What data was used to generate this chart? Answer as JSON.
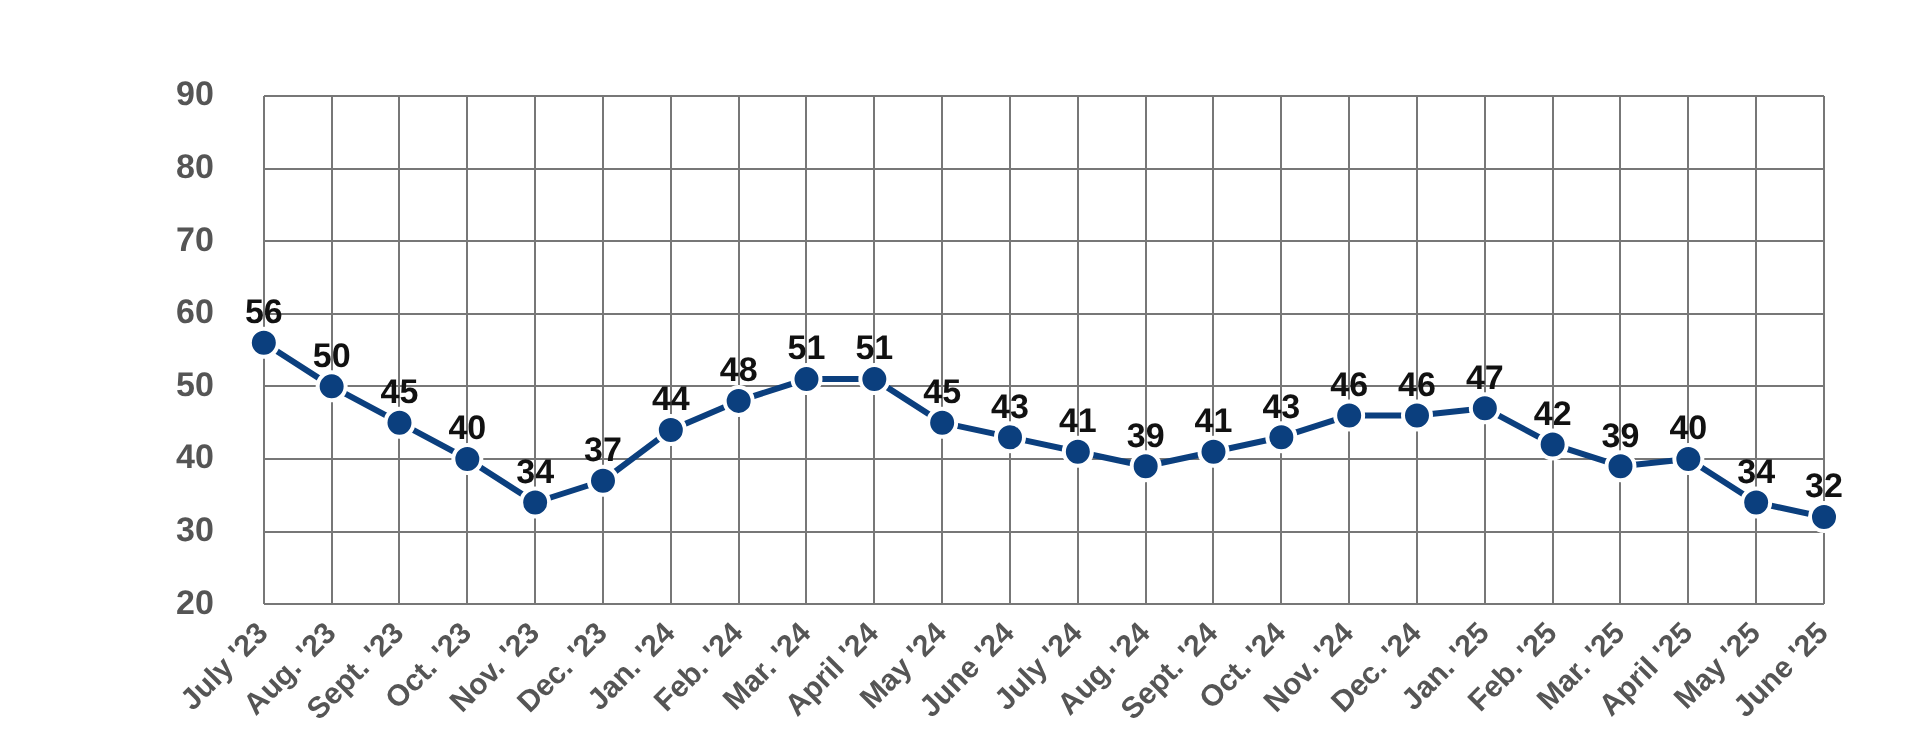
{
  "chart_data": {
    "type": "line",
    "categories": [
      "July '23",
      "Aug. '23",
      "Sept. '23",
      "Oct. '23",
      "Nov. '23",
      "Dec. '23",
      "Jan. '24",
      "Feb. '24",
      "Mar. '24",
      "April '24",
      "May '24",
      "June '24",
      "July '24",
      "Aug. '24",
      "Sept. '24",
      "Oct. '24",
      "Nov. '24",
      "Dec. '24",
      "Jan. '25",
      "Feb. '25",
      "Mar. '25",
      "April '25",
      "May '25",
      "June '25"
    ],
    "series": [
      {
        "color": "#0b3f7e",
        "values": [
          56,
          50,
          45,
          40,
          34,
          37,
          44,
          48,
          51,
          51,
          45,
          43,
          41,
          39,
          41,
          43,
          46,
          46,
          47,
          42,
          39,
          40,
          34,
          32
        ]
      }
    ],
    "ylim": [
      20,
      90
    ],
    "yticks": [
      20,
      30,
      40,
      50,
      60,
      70,
      80,
      90
    ],
    "grid": true,
    "legend": false,
    "marker": "circle",
    "line_style": "solid",
    "data_labels": true
  }
}
